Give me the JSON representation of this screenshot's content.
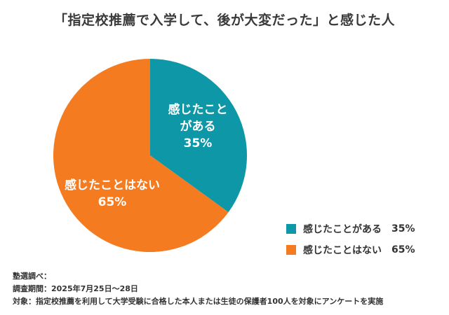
{
  "chart_data": {
    "type": "pie",
    "title": "「指定校推薦で入学して、後が大変だった」と感じた人",
    "categories": [
      "感じたことがある",
      "感じたことはない"
    ],
    "values": [
      35,
      65
    ],
    "unit": "%",
    "colors": [
      "#0e97a6",
      "#f47b20"
    ],
    "slice_labels": [
      {
        "lines": [
          "感じたこと",
          "がある"
        ],
        "pct": "35%"
      },
      {
        "lines": [
          "感じたことはない"
        ],
        "pct": "65%"
      }
    ],
    "legend_placement": "bottom-right"
  },
  "legend": [
    {
      "label": "感じたことがある",
      "pct": "35%"
    },
    {
      "label": "感じたことはない",
      "pct": "65%"
    }
  ],
  "notes": {
    "line1": "塾選調べ：",
    "line2": "調査期間：2025年7月25日〜28日",
    "line3": "対象：指定校推薦を利用して大学受験に合格した本人または生徒の保護者100人を対象にアンケートを実施"
  }
}
